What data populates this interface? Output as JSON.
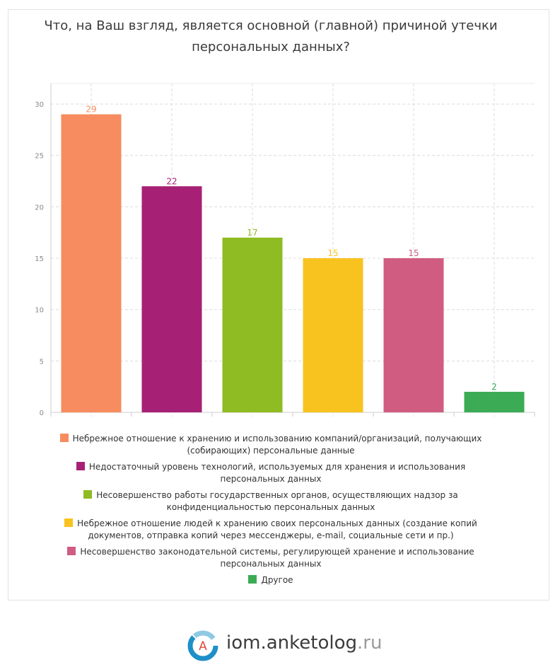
{
  "title": "Что, на Ваш взгляд, является основной (главной) причиной утечки персональных данных?",
  "chart_data": {
    "type": "bar",
    "title": "Что, на Ваш взгляд, является основной (главной) причиной утечки персональных данных?",
    "xlabel": "",
    "ylabel": "",
    "ylim": [
      0,
      32
    ],
    "yticks": [
      0,
      5,
      10,
      15,
      20,
      25,
      30
    ],
    "grid": true,
    "legend_position": "bottom",
    "categories": [
      "Небрежное отношение к хранению и использованию компаний/организаций, получающих (собирающих) персональные данные",
      "Недостаточный уровень технологий, используемых для хранения и использования персональных данных",
      "Несовершенство работы государственных органов, осуществляющих надзор за конфиденциальностью персональных данных",
      "Небрежное отношение людей к хранению своих персональных данных (создание копий документов, отправка копий через мессенджеры, e-mail, социальные сети и пр.)",
      "Несовершенство законодательной системы, регулирующей хранение и использование персональных данных",
      "Другое"
    ],
    "values": [
      29,
      22,
      17,
      15,
      15,
      2
    ],
    "colors": [
      "#f68c5f",
      "#a62175",
      "#8fbb23",
      "#f9c31f",
      "#d05c82",
      "#3bab55"
    ]
  },
  "footer": {
    "brand_main": "iom.anketolog",
    "brand_tld": ".ru",
    "logo_letter": "A"
  }
}
